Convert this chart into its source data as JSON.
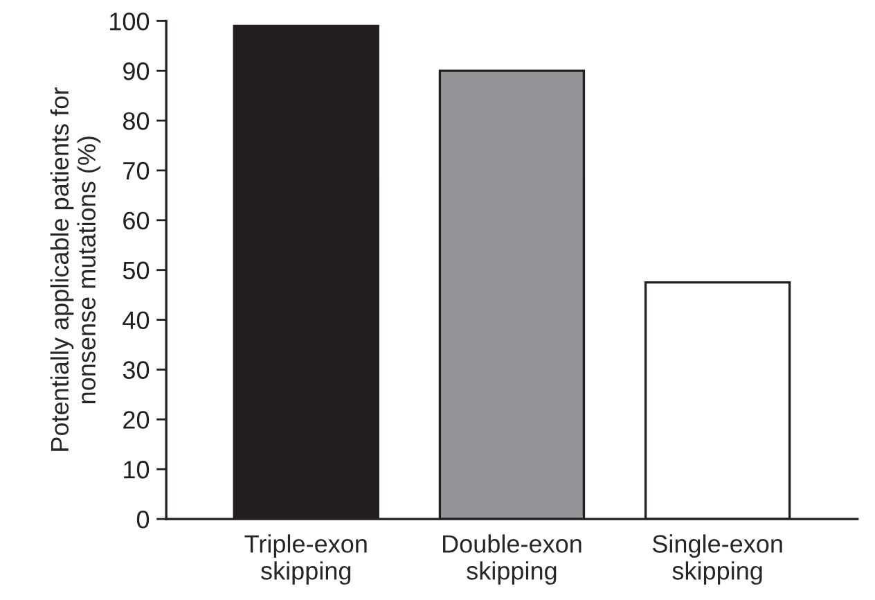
{
  "chart_data": {
    "type": "bar",
    "ylabel": "Potentially applicable patients for\nnonsense mutations (%)",
    "categories": [
      "Triple-exon\nskipping",
      "Double-exon\nskipping",
      "Single-exon\nskipping"
    ],
    "values": [
      99,
      90,
      47.5
    ],
    "colors": [
      "#231f20",
      "#939598",
      "#ffffff"
    ],
    "ylim": [
      0,
      100
    ],
    "yticks": [
      0,
      10,
      20,
      30,
      40,
      50,
      60,
      70,
      80,
      90,
      100
    ],
    "grid": false
  }
}
